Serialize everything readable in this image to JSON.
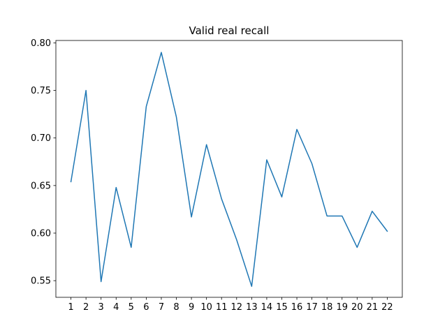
{
  "chart_data": {
    "type": "line",
    "title": "Valid real recall",
    "xlabel": "",
    "ylabel": "",
    "x": [
      1,
      2,
      3,
      4,
      5,
      6,
      7,
      8,
      9,
      10,
      11,
      12,
      13,
      14,
      15,
      16,
      17,
      18,
      19,
      20,
      21,
      22
    ],
    "series": [
      {
        "values": [
          0.654,
          0.75,
          0.549,
          0.648,
          0.585,
          0.733,
          0.79,
          0.722,
          0.617,
          0.693,
          0.636,
          0.593,
          0.544,
          0.677,
          0.638,
          0.709,
          0.673,
          0.618,
          0.618,
          0.585,
          0.623,
          0.602
        ],
        "color": "#1f77b4"
      }
    ],
    "xlim": [
      0,
      23
    ],
    "ylim": [
      0.5325,
      0.8025
    ],
    "yticks": [
      0.55,
      0.6,
      0.65,
      0.7,
      0.75,
      0.8
    ],
    "ytick_labels": [
      "0.55",
      "0.60",
      "0.65",
      "0.70",
      "0.75",
      "0.80"
    ],
    "xtick_labels": [
      "1",
      "2",
      "3",
      "4",
      "5",
      "6",
      "7",
      "8",
      "9",
      "10",
      "11",
      "12",
      "13",
      "14",
      "15",
      "16",
      "17",
      "18",
      "19",
      "20",
      "21",
      "22"
    ],
    "grid": false,
    "legend": "none"
  }
}
